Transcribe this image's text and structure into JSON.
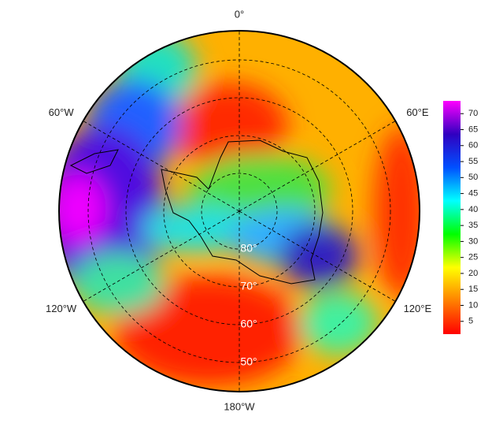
{
  "map": {
    "longitude_labels": [
      {
        "value": 0,
        "label": "0°"
      },
      {
        "value": 60,
        "label": "60°E"
      },
      {
        "value": 120,
        "label": "120°E"
      },
      {
        "value": 180,
        "label": "180°W"
      },
      {
        "value": -120,
        "label": "120°W"
      },
      {
        "value": -60,
        "label": "60°W"
      }
    ],
    "latitude_labels": [
      {
        "value": -80,
        "label": "80°"
      },
      {
        "value": -70,
        "label": "70°"
      },
      {
        "value": -60,
        "label": "60°"
      },
      {
        "value": -50,
        "label": "50°"
      }
    ],
    "colorbar": {
      "lim": [
        1,
        74
      ],
      "ticks": [
        5,
        10,
        15,
        20,
        25,
        30,
        35,
        40,
        45,
        50,
        55,
        60,
        65,
        70
      ],
      "colors": [
        "#ff0000",
        "#ff8000",
        "#ffff00",
        "#00ff00",
        "#00ffff",
        "#0050ff",
        "#3000c0",
        "#ff00ff"
      ]
    }
  }
}
